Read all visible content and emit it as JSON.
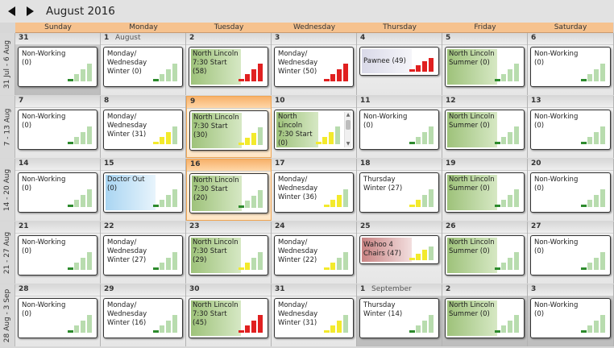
{
  "header": {
    "title": "August 2016",
    "prev_icon": "triangle-left-icon",
    "next_icon": "triangle-right-icon"
  },
  "day_names": [
    "Sunday",
    "Monday",
    "Tuesday",
    "Wednesday",
    "Thursday",
    "Friday",
    "Saturday"
  ],
  "colors": {
    "header_bar": "#f6c28e",
    "green_event": "#9ec27a",
    "blue_event": "#a9d5f2",
    "grey_event": "#d9d9e8",
    "red_event": "#c98383",
    "bar_red": "#e02020",
    "bar_yellow": "#f3ea2c",
    "bar_green": "#2d8b2d",
    "bar_light": "#b8dcae"
  },
  "weeks": [
    {
      "label": "31 Jul - 6 Aug",
      "days": [
        {
          "num": "31",
          "other": true,
          "event": {
            "text": "Non-Working (0)",
            "color": "white",
            "level": "green",
            "fill": 1
          }
        },
        {
          "num": "1",
          "month": "August",
          "event": {
            "text": "Monday/ Wednesday Winter (0)",
            "color": "white",
            "level": "green",
            "fill": 1
          }
        },
        {
          "num": "2",
          "event": {
            "text": "North Lincoln 7:30 Start (58)",
            "color": "green",
            "level": "red",
            "fill": 4
          }
        },
        {
          "num": "3",
          "event": {
            "text": "Monday/ Wednesday Winter (50)",
            "color": "white",
            "level": "red",
            "fill": 4
          }
        },
        {
          "num": "4",
          "event": {
            "text": "Pawnee (49)",
            "color": "grey",
            "level": "red",
            "fill": 4,
            "short": true
          }
        },
        {
          "num": "5",
          "event": {
            "text": "North Lincoln Summer (0)",
            "color": "green",
            "level": "green",
            "fill": 1
          }
        },
        {
          "num": "6",
          "event": {
            "text": "Non-Working (0)",
            "color": "white",
            "level": "green",
            "fill": 1
          }
        }
      ]
    },
    {
      "label": "7 - 13 Aug",
      "days": [
        {
          "num": "7",
          "event": {
            "text": "Non-Working (0)",
            "color": "white",
            "level": "green",
            "fill": 1
          }
        },
        {
          "num": "8",
          "event": {
            "text": "Monday/ Wednesday Winter (31)",
            "color": "white",
            "level": "yellow",
            "fill": 3
          }
        },
        {
          "num": "9",
          "today": true,
          "event": {
            "text": "North Lincoln 7:30 Start (30)",
            "color": "green",
            "level": "yellow",
            "fill": 3
          }
        },
        {
          "num": "10",
          "event": {
            "text": "North Lincoln 7:30 Start (0)",
            "color": "green",
            "level": "yellow",
            "fill": 3,
            "tall": true
          }
        },
        {
          "num": "11",
          "event": {
            "text": "Non-Working (0)",
            "color": "white",
            "level": "green",
            "fill": 1
          }
        },
        {
          "num": "12",
          "event": {
            "text": "North Lincoln Summer (0)",
            "color": "green",
            "level": "green",
            "fill": 1
          }
        },
        {
          "num": "13",
          "event": {
            "text": "Non-Working (0)",
            "color": "white",
            "level": "green",
            "fill": 1
          }
        }
      ]
    },
    {
      "label": "14 - 20 Aug",
      "days": [
        {
          "num": "14",
          "event": {
            "text": "Non-Working (0)",
            "color": "white",
            "level": "green",
            "fill": 1
          }
        },
        {
          "num": "15",
          "event": {
            "text": "Doctor Out (0)",
            "color": "blue",
            "level": "green",
            "fill": 1
          }
        },
        {
          "num": "16",
          "today": true,
          "event": {
            "text": "North Lincoln 7:30 Start (20)",
            "color": "green",
            "level": "green",
            "fill": 1
          }
        },
        {
          "num": "17",
          "event": {
            "text": "Monday/ Wednesday Winter (36)",
            "color": "white",
            "level": "yellow",
            "fill": 3
          }
        },
        {
          "num": "18",
          "event": {
            "text": "Thursday Winter (27)",
            "color": "white",
            "level": "yellow",
            "fill": 2
          }
        },
        {
          "num": "19",
          "event": {
            "text": "North Lincoln Summer (0)",
            "color": "green",
            "level": "green",
            "fill": 1
          }
        },
        {
          "num": "20",
          "event": {
            "text": "Non-Working (0)",
            "color": "white",
            "level": "green",
            "fill": 1
          }
        }
      ]
    },
    {
      "label": "21 - 27 Aug",
      "days": [
        {
          "num": "21",
          "event": {
            "text": "Non-Working (0)",
            "color": "white",
            "level": "green",
            "fill": 1
          }
        },
        {
          "num": "22",
          "event": {
            "text": "Monday/ Wednesday Winter (27)",
            "color": "white",
            "level": "green",
            "fill": 1
          }
        },
        {
          "num": "23",
          "event": {
            "text": "North Lincoln 7:30 Start (29)",
            "color": "green",
            "level": "yellow",
            "fill": 2
          }
        },
        {
          "num": "24",
          "event": {
            "text": "Monday/ Wednesday Winter (22)",
            "color": "white",
            "level": "yellow",
            "fill": 2
          }
        },
        {
          "num": "25",
          "event": {
            "text": "Wahoo 4 Chairs (47)",
            "color": "red",
            "level": "yellow",
            "fill": 3,
            "short": true
          }
        },
        {
          "num": "26",
          "event": {
            "text": "North Lincoln Summer (0)",
            "color": "green",
            "level": "green",
            "fill": 1
          }
        },
        {
          "num": "27",
          "event": {
            "text": "Non-Working (0)",
            "color": "white",
            "level": "green",
            "fill": 1
          }
        }
      ]
    },
    {
      "label": "28 Aug - 3 Sep",
      "days": [
        {
          "num": "28",
          "event": {
            "text": "Non-Working (0)",
            "color": "white",
            "level": "green",
            "fill": 1
          }
        },
        {
          "num": "29",
          "event": {
            "text": "Monday/ Wednesday Winter (16)",
            "color": "white",
            "level": "green",
            "fill": 1
          }
        },
        {
          "num": "30",
          "event": {
            "text": "North Lincoln 7:30 Start (45)",
            "color": "green",
            "level": "red",
            "fill": 4
          }
        },
        {
          "num": "31",
          "event": {
            "text": "Monday/ Wednesday Winter (31)",
            "color": "white",
            "level": "yellow",
            "fill": 3
          }
        },
        {
          "num": "1",
          "month": "September",
          "other": true,
          "event": {
            "text": "Thursday Winter (14)",
            "color": "white",
            "level": "green",
            "fill": 1
          }
        },
        {
          "num": "2",
          "other": true,
          "event": {
            "text": "North Lincoln Summer (0)",
            "color": "green",
            "level": "green",
            "fill": 1
          }
        },
        {
          "num": "3",
          "other": true,
          "event": {
            "text": "Non-Working (0)",
            "color": "white",
            "level": "green",
            "fill": 1
          }
        }
      ]
    }
  ]
}
